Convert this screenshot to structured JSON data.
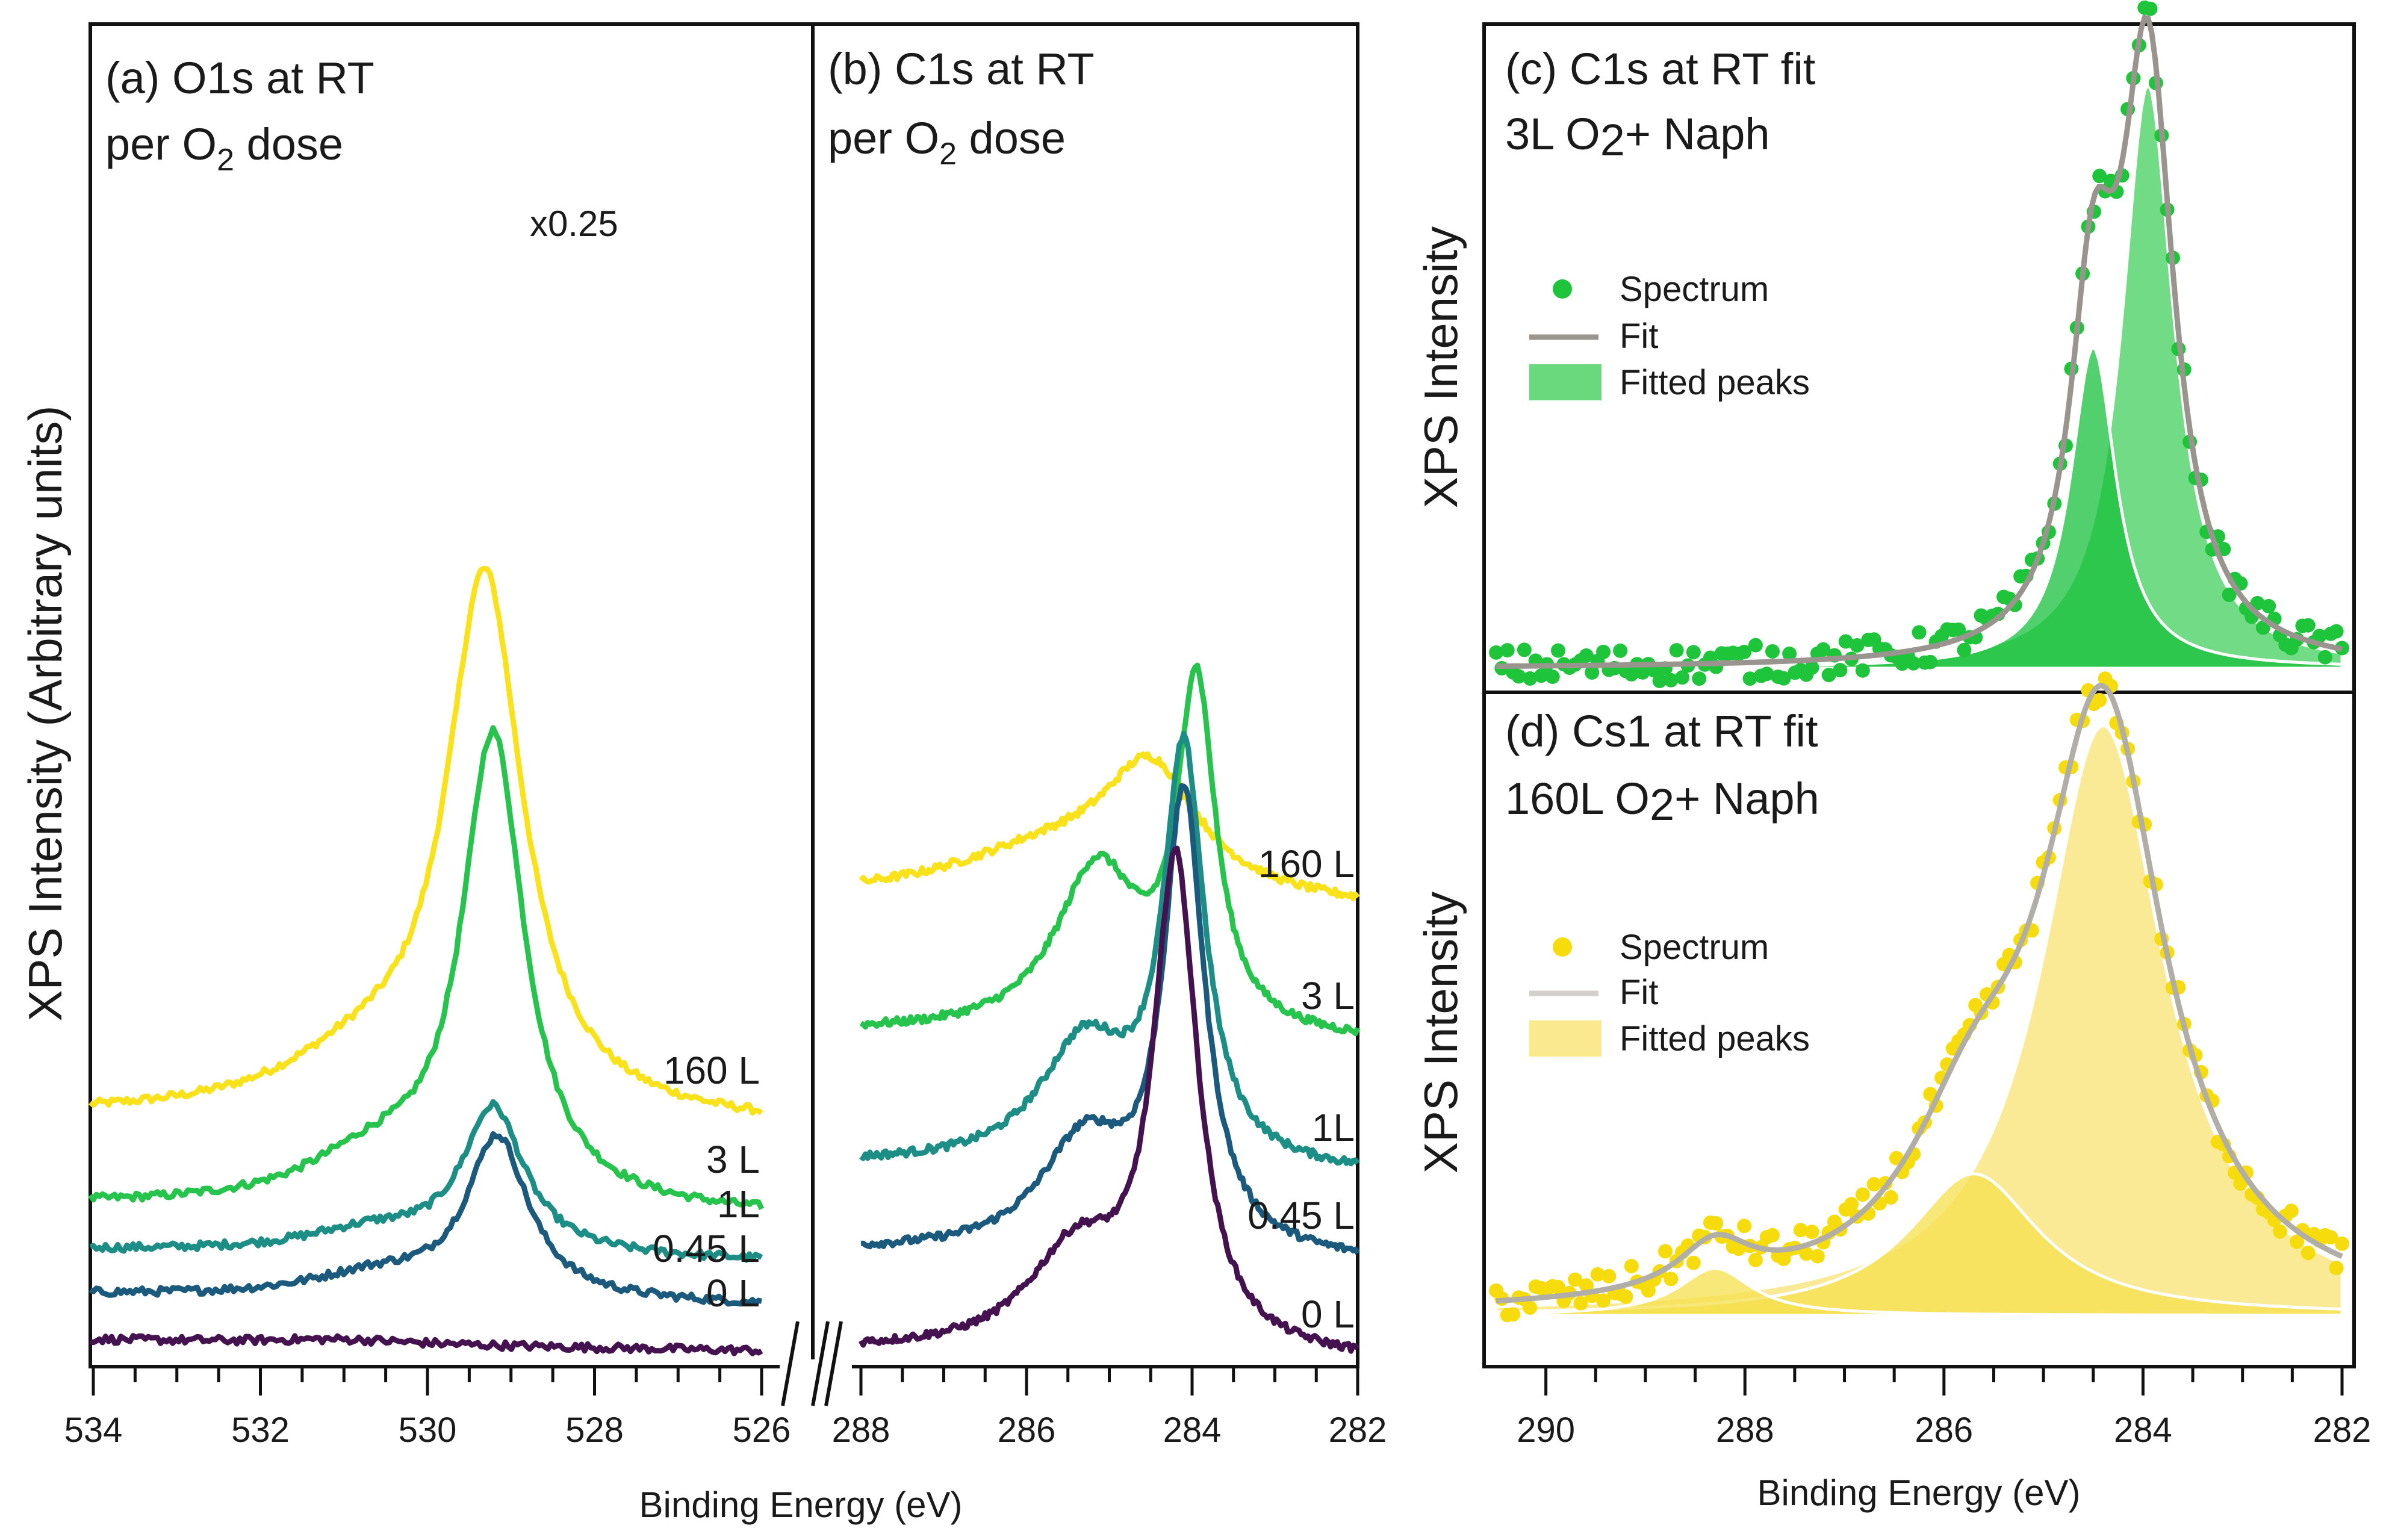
{
  "figure": {
    "y_label_left": "XPS Intensity (Arbitrary units)",
    "x_label_left": "Binding Energy (eV)",
    "x_label_right": "Binding Energy (eV)"
  },
  "chart_data": [
    {
      "id": "a",
      "type": "line",
      "title_line1": "(a) O1s at RT",
      "title_line2_main": "per O",
      "title_line2_sub": "2",
      "title_line2_tail": " dose",
      "xlim": [
        534,
        526
      ],
      "xticks": [
        534,
        532,
        530,
        528,
        526
      ],
      "annotation": "x0.25",
      "series": [
        {
          "name": "160 L",
          "color": "#f9e21a",
          "baseline": 1.0,
          "peak": 2.4,
          "center": 529.3,
          "width": 0.55,
          "shoulder": 0.22
        },
        {
          "name": "3 L",
          "color": "#26c44d",
          "baseline": 0.6,
          "peak": 2.1,
          "center": 529.2,
          "width": 0.45,
          "shoulder": 0.2
        },
        {
          "name": "1L",
          "color": "#1d8e86",
          "baseline": 0.4,
          "peak": 0.65,
          "center": 529.2,
          "width": 0.45,
          "shoulder": 0.1
        },
        {
          "name": "0.45 L",
          "color": "#1b5a7d",
          "baseline": 0.2,
          "peak": 0.72,
          "center": 529.15,
          "width": 0.45,
          "shoulder": 0.1
        },
        {
          "name": "0 L",
          "color": "#44124f",
          "baseline": 0.0,
          "peak": 0.02,
          "center": 531.0,
          "width": 1.0,
          "shoulder": 0.0
        }
      ]
    },
    {
      "id": "b",
      "type": "line",
      "title_line1": "(b) C1s at RT",
      "title_line2_main": "per O",
      "title_line2_sub": "2",
      "title_line2_tail": " dose",
      "xlim": [
        288,
        282
      ],
      "xticks": [
        288,
        286,
        284,
        282
      ],
      "series": [
        {
          "name": "160 L",
          "color": "#f9e21a",
          "baseline": 2.05,
          "peak": 0.55,
          "center": 284.5,
          "width": 0.7,
          "shoulder": 0.22
        },
        {
          "name": "3 L",
          "color": "#26c44d",
          "baseline": 1.45,
          "peak": 1.55,
          "center": 283.95,
          "width": 0.28,
          "shoulder": 0.75
        },
        {
          "name": "1L",
          "color": "#1d8e86",
          "baseline": 0.85,
          "peak": 1.85,
          "center": 284.1,
          "width": 0.3,
          "shoulder": 0.55
        },
        {
          "name": "0.45 L",
          "color": "#1b5a7d",
          "baseline": 0.45,
          "peak": 2.05,
          "center": 284.1,
          "width": 0.3,
          "shoulder": 0.5
        },
        {
          "name": "0 L",
          "color": "#44124f",
          "baseline": 0.0,
          "peak": 2.2,
          "center": 284.2,
          "width": 0.32,
          "shoulder": 0.45
        }
      ]
    },
    {
      "id": "c",
      "type": "scatter",
      "title_line1": "(c) C1s at RT fit",
      "title_line2_main": "3L O",
      "title_line2_sub": "2",
      "title_line2_tail": "+ Naph",
      "ylabel": "XPS Intensity",
      "xlim": [
        290.5,
        282
      ],
      "legend": [
        "Spectrum",
        "Fit",
        "Fitted peaks"
      ],
      "colors": {
        "points": "#1ec43a",
        "fit": "#9a948e",
        "peak_light": "#6ad97e",
        "peak_dark": "#18c03c"
      },
      "peaks": [
        {
          "center": 283.95,
          "amplitude": 1.0,
          "width": 0.32
        },
        {
          "center": 284.5,
          "amplitude": 0.55,
          "width": 0.28
        }
      ]
    },
    {
      "id": "d",
      "type": "scatter",
      "title_line1": "(d) Cs1 at RT fit",
      "title_line2_main": "160L O",
      "title_line2_sub": "2",
      "title_line2_tail": "+ Naph",
      "ylabel": "XPS Intensity",
      "xlim": [
        290.5,
        282
      ],
      "xticks": [
        290,
        288,
        286,
        284,
        282
      ],
      "legend": [
        "Spectrum",
        "Fit",
        "Fitted peaks"
      ],
      "colors": {
        "points": "#f6dc0c",
        "fit": "#b1aea8",
        "peak_light": "#fae98f",
        "peak_dark": "#f6e04d"
      },
      "peaks": [
        {
          "center": 284.4,
          "amplitude": 1.0,
          "width": 0.75
        },
        {
          "center": 285.7,
          "amplitude": 0.24,
          "width": 0.8
        },
        {
          "center": 288.3,
          "amplitude": 0.08,
          "width": 0.45
        }
      ]
    }
  ]
}
